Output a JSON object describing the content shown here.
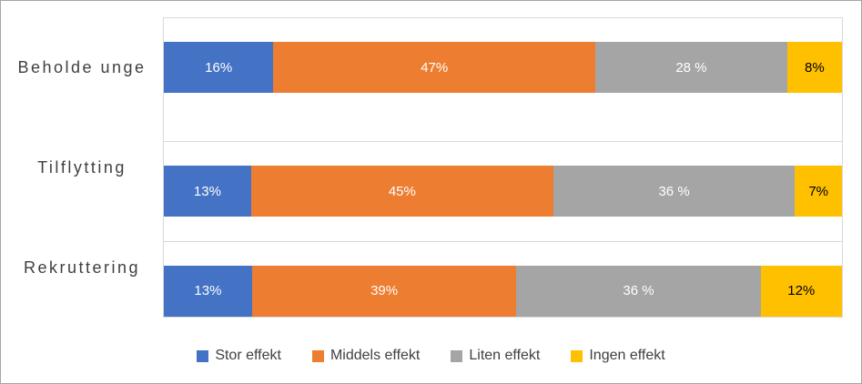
{
  "chart_data": {
    "type": "bar",
    "stacked": true,
    "orientation": "horizontal",
    "title": "",
    "xlabel": "",
    "ylabel": "",
    "xlim": [
      0,
      100
    ],
    "grid": "category-separators",
    "legend_position": "bottom",
    "categories": [
      "Beholde unge",
      "Tilflytting",
      "Rekruttering"
    ],
    "series": [
      {
        "name": "Stor effekt",
        "color": "#4472C4",
        "label_color": "#FFFFFF",
        "values": [
          16,
          13,
          13
        ],
        "labels": [
          "16%",
          "13%",
          "13%"
        ]
      },
      {
        "name": "Middels effekt",
        "color": "#ED7D31",
        "label_color": "#FFFFFF",
        "values": [
          47,
          45,
          39
        ],
        "labels": [
          "47%",
          "45%",
          "39%"
        ]
      },
      {
        "name": "Liten effekt",
        "color": "#A5A5A5",
        "label_color": "#FFFFFF",
        "values": [
          28,
          36,
          36
        ],
        "labels": [
          "28 %",
          "36 %",
          "36 %"
        ]
      },
      {
        "name": "Ingen effekt",
        "color": "#FFC000",
        "label_color": "#000000",
        "values": [
          8,
          7,
          12
        ],
        "labels": [
          "8%",
          "7%",
          "12%"
        ]
      }
    ]
  }
}
